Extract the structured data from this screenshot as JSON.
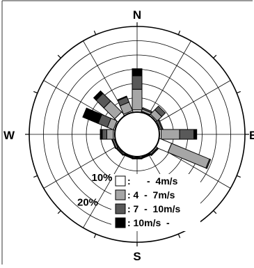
{
  "chart_data": {
    "type": "windrose",
    "title": "",
    "directions": [
      "N",
      "NNE",
      "NE",
      "ENE",
      "E",
      "ESE",
      "SE",
      "SSE",
      "S",
      "SSW",
      "SW",
      "WSW",
      "W",
      "WNW",
      "NW",
      "NNW"
    ],
    "cardinal_labels": {
      "N": "N",
      "E": "E",
      "S": "S",
      "W": "W"
    },
    "radial_ticks": [
      10,
      20
    ],
    "radial_tick_labels": [
      "10%",
      "20%"
    ],
    "r_max": 30,
    "calm_center": true,
    "grid": true,
    "legend_position": "bottom-left",
    "series": [
      {
        "name": ":      -  4m/s",
        "color": "#ffffff",
        "values": [
          0.8,
          0.3,
          0.5,
          0.4,
          0.6,
          4.6,
          0.5,
          0.3,
          0.4,
          0.3,
          0.4,
          0.3,
          0.5,
          0.5,
          1.6,
          0.5
        ]
      },
      {
        "name": ": 4  -  7m/s",
        "color": "#a6a6a6",
        "values": [
          7.2,
          0.8,
          2.2,
          0.5,
          6.5,
          14.4,
          0.3,
          0.2,
          0.2,
          0.2,
          0.3,
          0.5,
          2.3,
          2.3,
          5.4,
          3.2
        ]
      },
      {
        "name": ": 7  -  10m/s",
        "color": "#595959",
        "values": [
          4.7,
          0.5,
          1.8,
          0.4,
          5.0,
          0.4,
          0.2,
          0.2,
          0.2,
          0.2,
          0.2,
          0.3,
          1.6,
          3.5,
          3.8,
          2.0
        ]
      },
      {
        "name": ": 10m/s  -",
        "color": "#000000",
        "values": [
          2.5,
          0.0,
          0.0,
          0.0,
          1.0,
          0.0,
          0.0,
          0.0,
          0.0,
          0.0,
          0.0,
          0.0,
          0.7,
          5.8,
          1.2,
          0.3
        ]
      }
    ]
  }
}
